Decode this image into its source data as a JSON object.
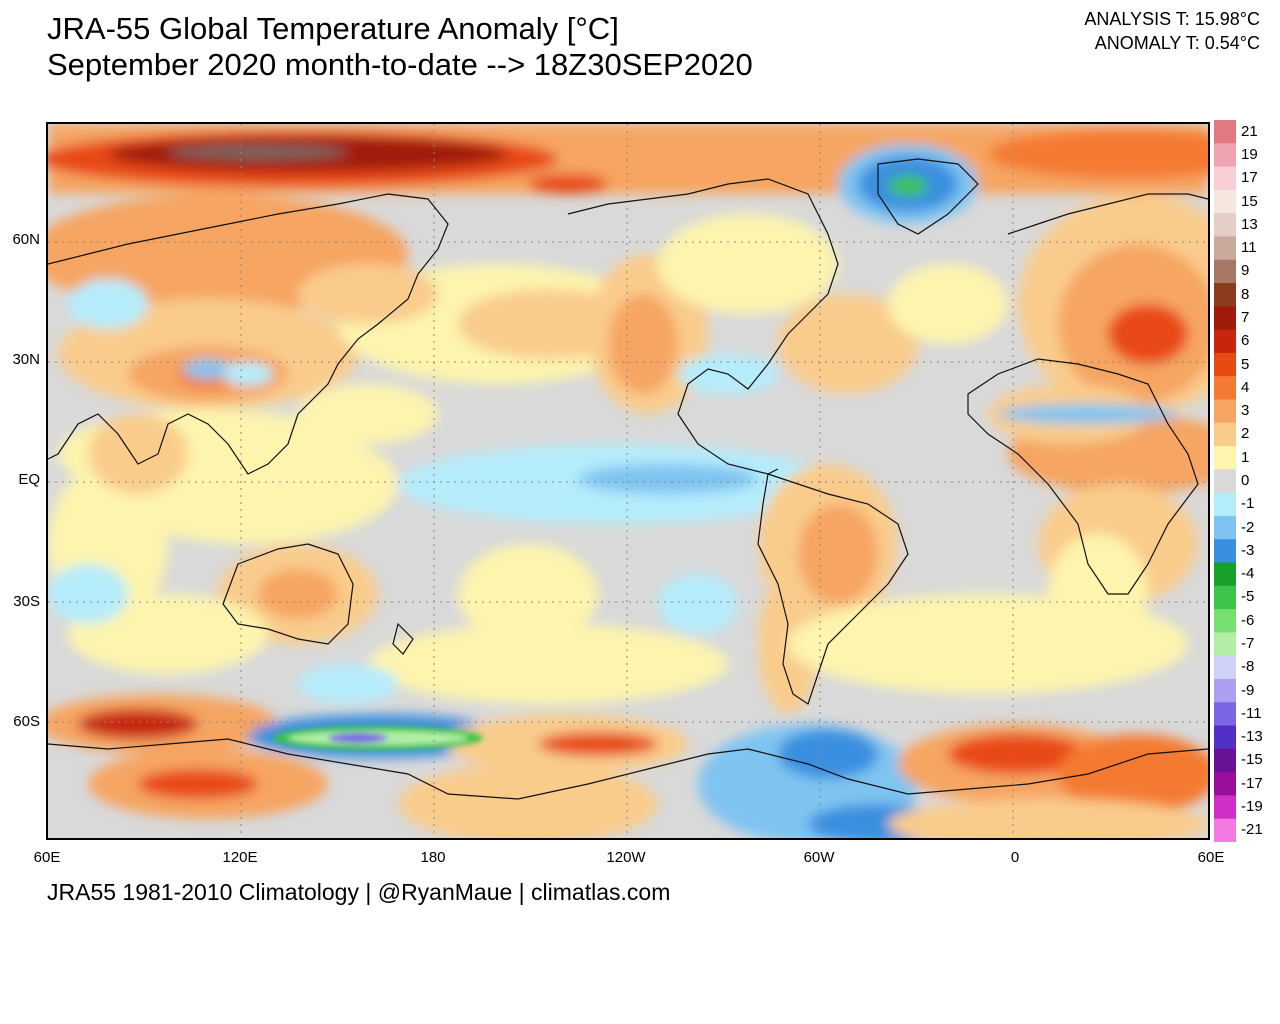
{
  "header": {
    "title_line1": "JRA-55 Global Temperature Anomaly [°C]",
    "title_line2": "September 2020 month-to-date --> 18Z30SEP2020",
    "analysis_t": "ANALYSIS T: 15.98°C",
    "anomaly_t": "ANOMALY T: 0.54°C"
  },
  "map": {
    "lat_labels": [
      "60N",
      "30N",
      "EQ",
      "30S",
      "60S"
    ],
    "lon_labels": [
      "60E",
      "120E",
      "180",
      "120W",
      "60W",
      "0",
      "60E"
    ]
  },
  "footer": {
    "credit": "JRA55 1981-2010 Climatology | @RyanMaue | climatlas.com"
  },
  "legend": {
    "labels": [
      "21",
      "19",
      "17",
      "15",
      "13",
      "11",
      "9",
      "8",
      "7",
      "6",
      "5",
      "4",
      "3",
      "2",
      "1",
      "0",
      "-1",
      "-2",
      "-3",
      "-4",
      "-5",
      "-6",
      "-7",
      "-8",
      "-9",
      "-11",
      "-13",
      "-15",
      "-17",
      "-19",
      "-21"
    ],
    "colors": [
      "#e07a80",
      "#f0a3b0",
      "#f8cfd4",
      "#f5e6e0",
      "#e3cfc6",
      "#c9aa9c",
      "#a47863",
      "#8b3b1e",
      "#a01a0a",
      "#c8260c",
      "#e84a12",
      "#f47a32",
      "#f6a562",
      "#f9cc8c",
      "#fdf4ad",
      "#d9d9d9",
      "#b5ecfb",
      "#7fc4f1",
      "#3a8fe0",
      "#16a02c",
      "#3ec44a",
      "#77df70",
      "#b0efa4",
      "#cfd2f7",
      "#ac9ff0",
      "#7a66e4",
      "#5230c8",
      "#6a1296",
      "#9a0e9c",
      "#d12ec8",
      "#f27ae0"
    ]
  }
}
